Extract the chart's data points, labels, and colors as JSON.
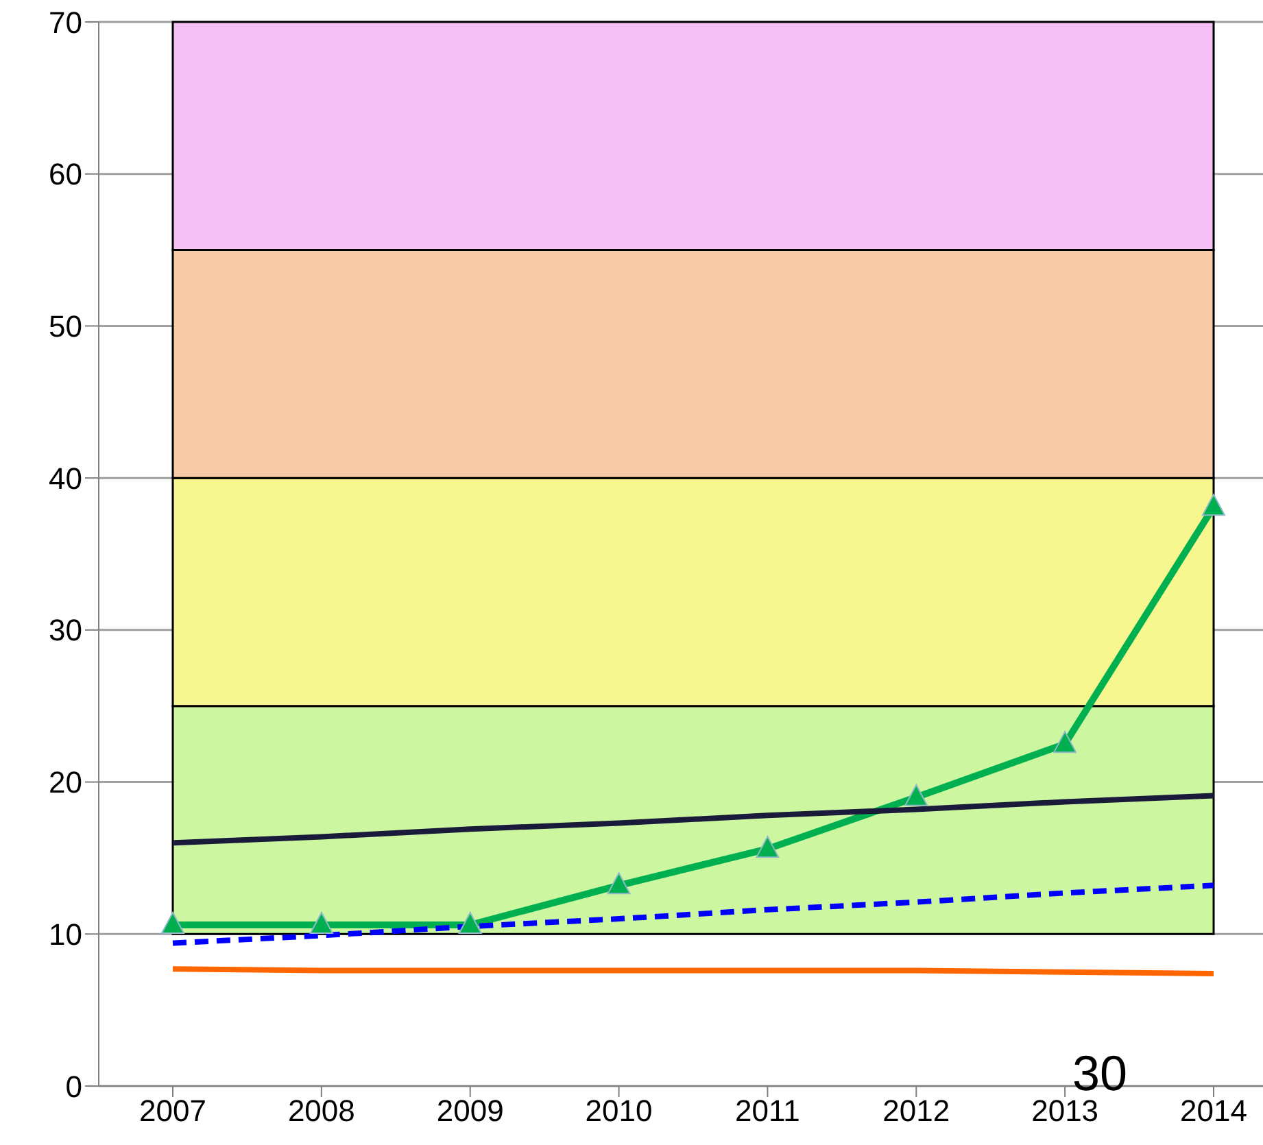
{
  "chart_data": {
    "type": "line",
    "categories": [
      "2007",
      "2008",
      "2009",
      "2010",
      "2011",
      "2012",
      "2013",
      "2014"
    ],
    "series": [
      {
        "color": "#00b050",
        "values": [
          10.6,
          10.6,
          10.6,
          13.2,
          15.6,
          19.0,
          22.5,
          38.1
        ],
        "marker": "triangle",
        "line_style": "solid"
      },
      {
        "color": "#1a1a3a",
        "values": [
          16.0,
          16.4,
          16.9,
          17.3,
          17.8,
          18.2,
          18.7,
          19.1
        ],
        "marker": "none",
        "line_style": "solid"
      },
      {
        "color": "#0000ff",
        "values": [
          9.4,
          9.9,
          10.5,
          11.0,
          11.6,
          12.1,
          12.7,
          13.2
        ],
        "marker": "none",
        "line_style": "dashed"
      },
      {
        "color": "#ff6600",
        "values": [
          7.7,
          7.6,
          7.6,
          7.6,
          7.6,
          7.6,
          7.5,
          7.4
        ],
        "marker": "none",
        "line_style": "solid"
      }
    ],
    "bands": [
      {
        "axis": "y",
        "from": 10,
        "to": 25,
        "color": "#ccf7a0"
      },
      {
        "axis": "y",
        "from": 25,
        "to": 40,
        "color": "#f7f78f"
      },
      {
        "axis": "y",
        "from": 40,
        "to": 55,
        "color": "#f7cba7"
      },
      {
        "axis": "y",
        "from": 55,
        "to": 70,
        "color": "#f5c0f5"
      }
    ],
    "ylim": [
      0,
      70
    ],
    "yticks": [
      0,
      10,
      20,
      30,
      40,
      50,
      60,
      70
    ],
    "grid": "y",
    "annotations": [
      "30"
    ]
  }
}
